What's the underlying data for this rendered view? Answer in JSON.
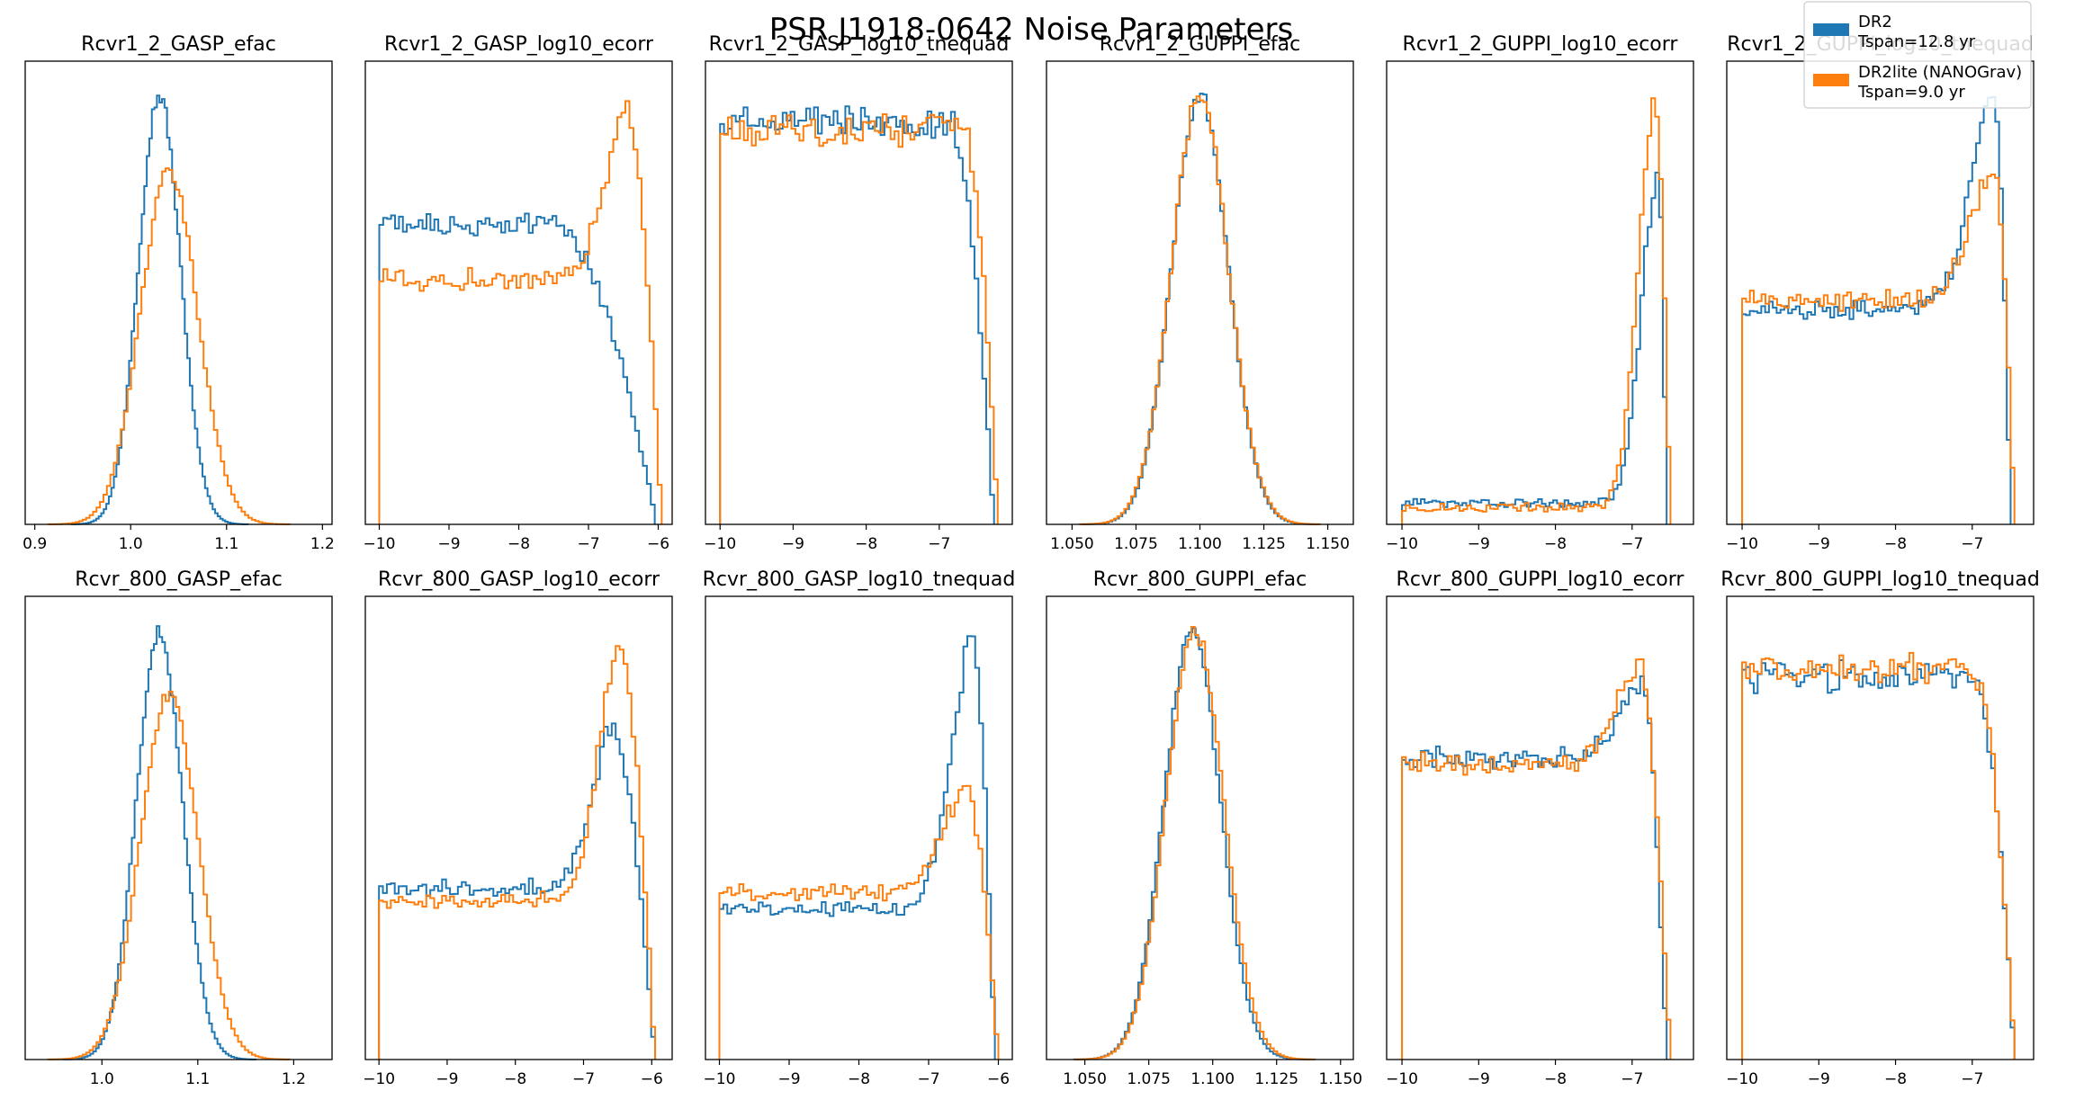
{
  "figure": {
    "title": "PSR J1918-0642 Noise Parameters",
    "background": "#ffffff"
  },
  "legend": {
    "placement": "top-right",
    "entries": [
      {
        "label": "DR2",
        "sublabel": "Tspan=12.8 yr",
        "color": "#1f77b4"
      },
      {
        "label": "DR2lite (NANOGrav)",
        "sublabel": "Tspan=9.0 yr",
        "color": "#ff7f0e"
      }
    ]
  },
  "chart_data": [
    {
      "type": "histogram",
      "title": "Rcvr1_2_GASP_efac",
      "xlim": [
        0.89,
        1.21
      ],
      "xticks": [
        0.9,
        1.0,
        1.1,
        1.2
      ],
      "xtick_labels": [
        "0.9",
        "1.0",
        "1.1",
        "1.2"
      ],
      "ylim": [
        0,
        1.08
      ],
      "shape": "gauss",
      "series": [
        {
          "name": "DR2",
          "color": "#1f77b4",
          "center": 1.03,
          "width": 0.022,
          "peak": 1.0
        },
        {
          "name": "DR2lite (NANOGrav)",
          "color": "#ff7f0e",
          "center": 1.04,
          "width": 0.03,
          "peak": 0.82
        }
      ]
    },
    {
      "type": "histogram",
      "title": "Rcvr1_2_GASP_log10_ecorr",
      "xlim": [
        -10.2,
        -5.8
      ],
      "xticks": [
        -10,
        -9,
        -8,
        -7,
        -6
      ],
      "xtick_labels": [
        "−10",
        "−9",
        "−8",
        "−7",
        "−6"
      ],
      "ylim": [
        0,
        1.08
      ],
      "shape": "ecorr_blue",
      "series": [
        {
          "name": "DR2",
          "color": "#1f77b4",
          "start": -10.0,
          "end": -6.05,
          "plateau": 0.7,
          "peak": 0.7,
          "peak_at": -7.0
        },
        {
          "name": "DR2lite (NANOGrav)",
          "color": "#ff7f0e",
          "start": -10.0,
          "end": -5.95,
          "plateau": 0.57,
          "peak": 0.96,
          "peak_at": -6.4
        }
      ]
    },
    {
      "type": "histogram",
      "title": "Rcvr1_2_GASP_log10_tnequad",
      "xlim": [
        -10.2,
        -6.0
      ],
      "xticks": [
        -10,
        -9,
        -8,
        -7
      ],
      "xtick_labels": [
        "−10",
        "−9",
        "−8",
        "−7"
      ],
      "ylim": [
        0,
        1.08
      ],
      "shape": "plateau_drop",
      "series": [
        {
          "name": "DR2",
          "color": "#1f77b4",
          "start": -10.0,
          "end": -6.25,
          "plateau": 0.94,
          "drop_at": -6.9
        },
        {
          "name": "DR2lite (NANOGrav)",
          "color": "#ff7f0e",
          "start": -10.0,
          "end": -6.2,
          "plateau": 0.92,
          "drop_at": -6.7
        }
      ]
    },
    {
      "type": "histogram",
      "title": "Rcvr1_2_GUPPI_efac",
      "xlim": [
        1.04,
        1.16
      ],
      "xticks": [
        1.05,
        1.075,
        1.1,
        1.125,
        1.15
      ],
      "xtick_labels": [
        "1.050",
        "1.075",
        "1.100",
        "1.125",
        "1.150"
      ],
      "ylim": [
        0,
        1.08
      ],
      "shape": "gauss",
      "series": [
        {
          "name": "DR2",
          "color": "#1f77b4",
          "center": 1.1,
          "width": 0.011,
          "peak": 1.0
        },
        {
          "name": "DR2lite (NANOGrav)",
          "color": "#ff7f0e",
          "center": 1.1,
          "width": 0.0112,
          "peak": 1.0
        }
      ]
    },
    {
      "type": "histogram",
      "title": "Rcvr1_2_GUPPI_log10_ecorr",
      "xlim": [
        -10.2,
        -6.2
      ],
      "xticks": [
        -10,
        -9,
        -8,
        -7
      ],
      "xtick_labels": [
        "−10",
        "−9",
        "−8",
        "−7"
      ],
      "ylim": [
        0,
        1.08
      ],
      "shape": "low_spike",
      "series": [
        {
          "name": "DR2",
          "color": "#1f77b4",
          "start": -10.0,
          "end": -6.55,
          "plateau": 0.05,
          "peak": 0.82,
          "peak_at": -6.65
        },
        {
          "name": "DR2lite (NANOGrav)",
          "color": "#ff7f0e",
          "start": -10.0,
          "end": -6.5,
          "plateau": 0.04,
          "peak": 0.98,
          "peak_at": -6.7
        }
      ]
    },
    {
      "type": "histogram",
      "title": "Rcvr1_2_GUPPI_log10_tnequad",
      "xlim": [
        -10.2,
        -6.2
      ],
      "xticks": [
        -10,
        -9,
        -8,
        -7
      ],
      "xtick_labels": [
        "−10",
        "−9",
        "−8",
        "−7"
      ],
      "ylim": [
        0,
        1.08
      ],
      "shape": "plateau_spike",
      "series": [
        {
          "name": "DR2",
          "color": "#1f77b4",
          "start": -10.0,
          "end": -6.5,
          "plateau": 0.5,
          "peak": 0.98,
          "peak_at": -6.7
        },
        {
          "name": "DR2lite (NANOGrav)",
          "color": "#ff7f0e",
          "start": -10.0,
          "end": -6.45,
          "plateau": 0.52,
          "peak": 0.83,
          "peak_at": -6.7
        }
      ]
    },
    {
      "type": "histogram",
      "title": "Rcvr_800_GASP_efac",
      "xlim": [
        0.92,
        1.24
      ],
      "xticks": [
        1.0,
        1.1,
        1.2
      ],
      "xtick_labels": [
        "1.0",
        "1.1",
        "1.2"
      ],
      "ylim": [
        0,
        1.08
      ],
      "shape": "gauss",
      "series": [
        {
          "name": "DR2",
          "color": "#1f77b4",
          "center": 1.06,
          "width": 0.024,
          "peak": 1.0
        },
        {
          "name": "DR2lite (NANOGrav)",
          "color": "#ff7f0e",
          "center": 1.07,
          "width": 0.03,
          "peak": 0.85
        }
      ]
    },
    {
      "type": "histogram",
      "title": "Rcvr_800_GASP_log10_ecorr",
      "xlim": [
        -10.2,
        -5.7
      ],
      "xticks": [
        -10,
        -9,
        -8,
        -7,
        -6
      ],
      "xtick_labels": [
        "−10",
        "−9",
        "−8",
        "−7",
        "−6"
      ],
      "ylim": [
        0,
        1.08
      ],
      "shape": "plateau_spike",
      "series": [
        {
          "name": "DR2",
          "color": "#1f77b4",
          "start": -10.0,
          "end": -5.95,
          "plateau": 0.4,
          "peak": 0.77,
          "peak_at": -6.55
        },
        {
          "name": "DR2lite (NANOGrav)",
          "color": "#ff7f0e",
          "start": -10.0,
          "end": -5.95,
          "plateau": 0.37,
          "peak": 0.96,
          "peak_at": -6.45
        }
      ]
    },
    {
      "type": "histogram",
      "title": "Rcvr_800_GASP_log10_tnequad",
      "xlim": [
        -10.2,
        -5.8
      ],
      "xticks": [
        -10,
        -9,
        -8,
        -7,
        -6
      ],
      "xtick_labels": [
        "−10",
        "−9",
        "−8",
        "−7",
        "−6"
      ],
      "ylim": [
        0,
        1.08
      ],
      "shape": "plateau_spike",
      "series": [
        {
          "name": "DR2",
          "color": "#1f77b4",
          "start": -10.0,
          "end": -6.05,
          "plateau": 0.35,
          "peak": 0.98,
          "peak_at": -6.35
        },
        {
          "name": "DR2lite (NANOGrav)",
          "color": "#ff7f0e",
          "start": -10.0,
          "end": -6.0,
          "plateau": 0.39,
          "peak": 0.64,
          "peak_at": -6.45
        }
      ]
    },
    {
      "type": "histogram",
      "title": "Rcvr_800_GUPPI_efac",
      "xlim": [
        1.035,
        1.155
      ],
      "xticks": [
        1.05,
        1.075,
        1.1,
        1.125,
        1.15
      ],
      "xtick_labels": [
        "1.050",
        "1.075",
        "1.100",
        "1.125",
        "1.150"
      ],
      "ylim": [
        0,
        1.08
      ],
      "shape": "gauss",
      "series": [
        {
          "name": "DR2",
          "color": "#1f77b4",
          "center": 1.092,
          "width": 0.011,
          "peak": 1.0
        },
        {
          "name": "DR2lite (NANOGrav)",
          "color": "#ff7f0e",
          "center": 1.093,
          "width": 0.0112,
          "peak": 1.0
        }
      ]
    },
    {
      "type": "histogram",
      "title": "Rcvr_800_GUPPI_log10_ecorr",
      "xlim": [
        -10.2,
        -6.2
      ],
      "xticks": [
        -10,
        -9,
        -8,
        -7
      ],
      "xtick_labels": [
        "−10",
        "−9",
        "−8",
        "−7"
      ],
      "ylim": [
        0,
        1.08
      ],
      "shape": "plateau_spike",
      "series": [
        {
          "name": "DR2",
          "color": "#1f77b4",
          "start": -10.0,
          "end": -6.55,
          "plateau": 0.7,
          "peak": 0.87,
          "peak_at": -6.85
        },
        {
          "name": "DR2lite (NANOGrav)",
          "color": "#ff7f0e",
          "start": -10.0,
          "end": -6.5,
          "plateau": 0.69,
          "peak": 0.92,
          "peak_at": -6.9
        }
      ]
    },
    {
      "type": "histogram",
      "title": "Rcvr_800_GUPPI_log10_tnequad",
      "xlim": [
        -10.2,
        -6.2
      ],
      "xticks": [
        -10,
        -9,
        -8,
        -7
      ],
      "xtick_labels": [
        "−10",
        "−9",
        "−8",
        "−7"
      ],
      "ylim": [
        0,
        1.08
      ],
      "shape": "plateau_drop",
      "series": [
        {
          "name": "DR2",
          "color": "#1f77b4",
          "start": -10.0,
          "end": -6.45,
          "plateau": 0.89,
          "drop_at": -7.0
        },
        {
          "name": "DR2lite (NANOGrav)",
          "color": "#ff7f0e",
          "start": -10.0,
          "end": -6.45,
          "plateau": 0.91,
          "drop_at": -7.0
        }
      ]
    }
  ]
}
